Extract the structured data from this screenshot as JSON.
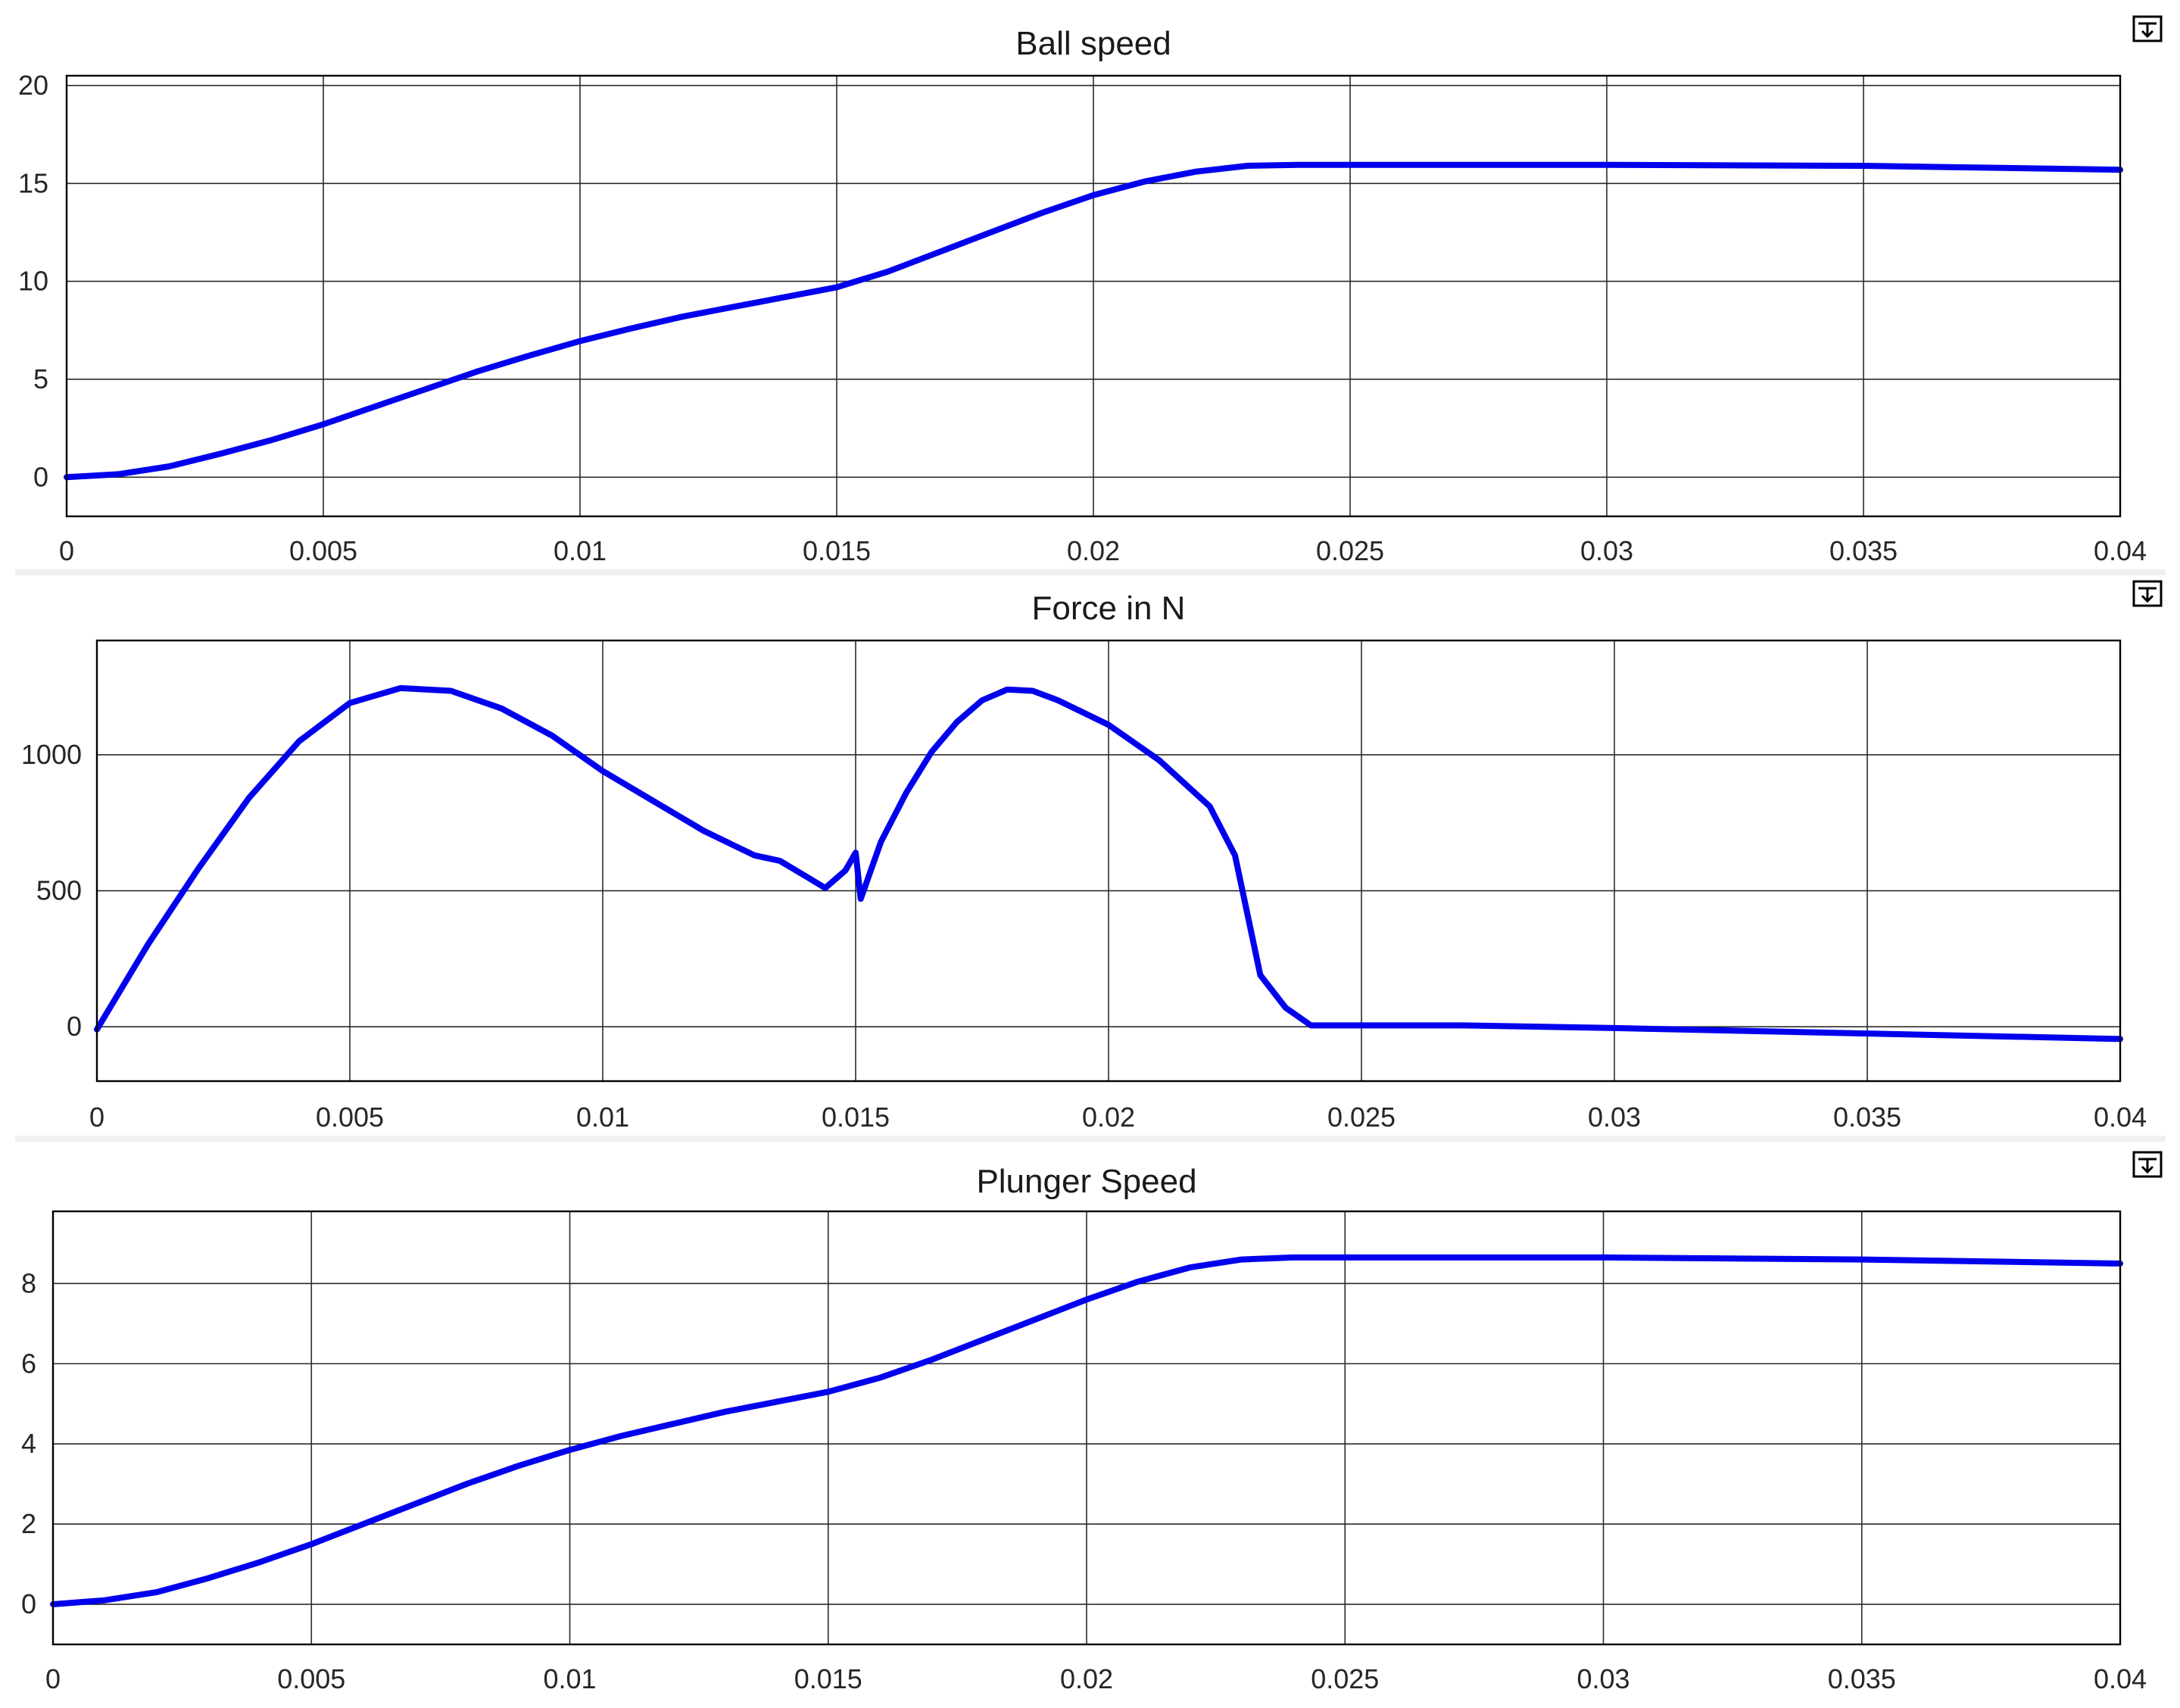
{
  "chart_data": [
    {
      "type": "line",
      "title": "Ball speed",
      "xlabel": "",
      "ylabel": "",
      "xlim": [
        0,
        0.04
      ],
      "ylim": [
        -2,
        20.5
      ],
      "grid": true,
      "x_ticks": [
        0,
        0.005,
        0.01,
        0.015,
        0.02,
        0.025,
        0.03,
        0.035,
        0.04
      ],
      "x_tick_labels": [
        "0",
        "0.005",
        "0.01",
        "0.015",
        "0.02",
        "0.025",
        "0.03",
        "0.035",
        "0.04"
      ],
      "y_ticks": [
        0,
        5,
        10,
        15,
        20
      ],
      "y_tick_labels": [
        "0",
        "5",
        "10",
        "15",
        "20"
      ],
      "series": [
        {
          "color": "#0000ee",
          "x": [
            0,
            0.001,
            0.002,
            0.003,
            0.004,
            0.005,
            0.006,
            0.007,
            0.008,
            0.009,
            0.01,
            0.011,
            0.012,
            0.013,
            0.014,
            0.015,
            0.016,
            0.017,
            0.018,
            0.019,
            0.02,
            0.021,
            0.022,
            0.023,
            0.024,
            0.025,
            0.03,
            0.035,
            0.04
          ],
          "y": [
            0,
            0.15,
            0.55,
            1.2,
            1.9,
            2.7,
            3.6,
            4.5,
            5.4,
            6.2,
            6.95,
            7.6,
            8.2,
            8.7,
            9.2,
            9.7,
            10.5,
            11.5,
            12.5,
            13.5,
            14.4,
            15.1,
            15.6,
            15.9,
            15.95,
            15.95,
            15.95,
            15.9,
            15.7
          ]
        }
      ]
    },
    {
      "type": "line",
      "title": "Force in N",
      "xlabel": "",
      "ylabel": "",
      "xlim": [
        0,
        0.04
      ],
      "ylim": [
        -200,
        1420
      ],
      "grid": true,
      "x_ticks": [
        0,
        0.005,
        0.01,
        0.015,
        0.02,
        0.025,
        0.03,
        0.035,
        0.04
      ],
      "x_tick_labels": [
        "0",
        "0.005",
        "0.01",
        "0.015",
        "0.02",
        "0.025",
        "0.03",
        "0.035",
        "0.04"
      ],
      "y_ticks": [
        0,
        500,
        1000
      ],
      "y_tick_labels": [
        "0",
        "500",
        "1000"
      ],
      "series": [
        {
          "color": "#0000ee",
          "x": [
            0,
            0.001,
            0.002,
            0.003,
            0.004,
            0.005,
            0.006,
            0.007,
            0.008,
            0.009,
            0.01,
            0.011,
            0.012,
            0.013,
            0.0135,
            0.014,
            0.0144,
            0.0148,
            0.015,
            0.0151,
            0.0155,
            0.016,
            0.0165,
            0.017,
            0.0175,
            0.018,
            0.0185,
            0.019,
            0.02,
            0.021,
            0.022,
            0.0225,
            0.023,
            0.0235,
            0.024,
            0.025,
            0.027,
            0.03,
            0.035,
            0.04
          ],
          "y": [
            -10,
            300,
            580,
            840,
            1050,
            1190,
            1245,
            1235,
            1170,
            1070,
            940,
            830,
            720,
            630,
            610,
            555,
            510,
            575,
            640,
            470,
            680,
            860,
            1010,
            1120,
            1200,
            1240,
            1235,
            1200,
            1110,
            980,
            810,
            630,
            190,
            70,
            5,
            5,
            5,
            -5,
            -25,
            -45
          ]
        }
      ]
    },
    {
      "type": "line",
      "title": "Plunger Speed",
      "xlabel": "",
      "ylabel": "",
      "xlim": [
        0,
        0.04
      ],
      "ylim": [
        -1,
        9.8
      ],
      "grid": true,
      "x_ticks": [
        0,
        0.005,
        0.01,
        0.015,
        0.02,
        0.025,
        0.03,
        0.035,
        0.04
      ],
      "x_tick_labels": [
        "0",
        "0.005",
        "0.01",
        "0.015",
        "0.02",
        "0.025",
        "0.03",
        "0.035",
        "0.04"
      ],
      "y_ticks": [
        0,
        2,
        4,
        6,
        8
      ],
      "y_tick_labels": [
        "0",
        "2",
        "4",
        "6",
        "8"
      ],
      "series": [
        {
          "color": "#0000ee",
          "x": [
            0,
            0.001,
            0.002,
            0.003,
            0.004,
            0.005,
            0.006,
            0.007,
            0.008,
            0.009,
            0.01,
            0.011,
            0.012,
            0.013,
            0.014,
            0.015,
            0.016,
            0.017,
            0.018,
            0.019,
            0.02,
            0.021,
            0.022,
            0.023,
            0.024,
            0.025,
            0.03,
            0.035,
            0.04
          ],
          "y": [
            0,
            0.1,
            0.3,
            0.65,
            1.05,
            1.5,
            2.0,
            2.5,
            3.0,
            3.45,
            3.85,
            4.2,
            4.5,
            4.8,
            5.05,
            5.3,
            5.65,
            6.1,
            6.6,
            7.1,
            7.6,
            8.05,
            8.4,
            8.6,
            8.65,
            8.65,
            8.65,
            8.6,
            8.5
          ]
        }
      ]
    }
  ]
}
